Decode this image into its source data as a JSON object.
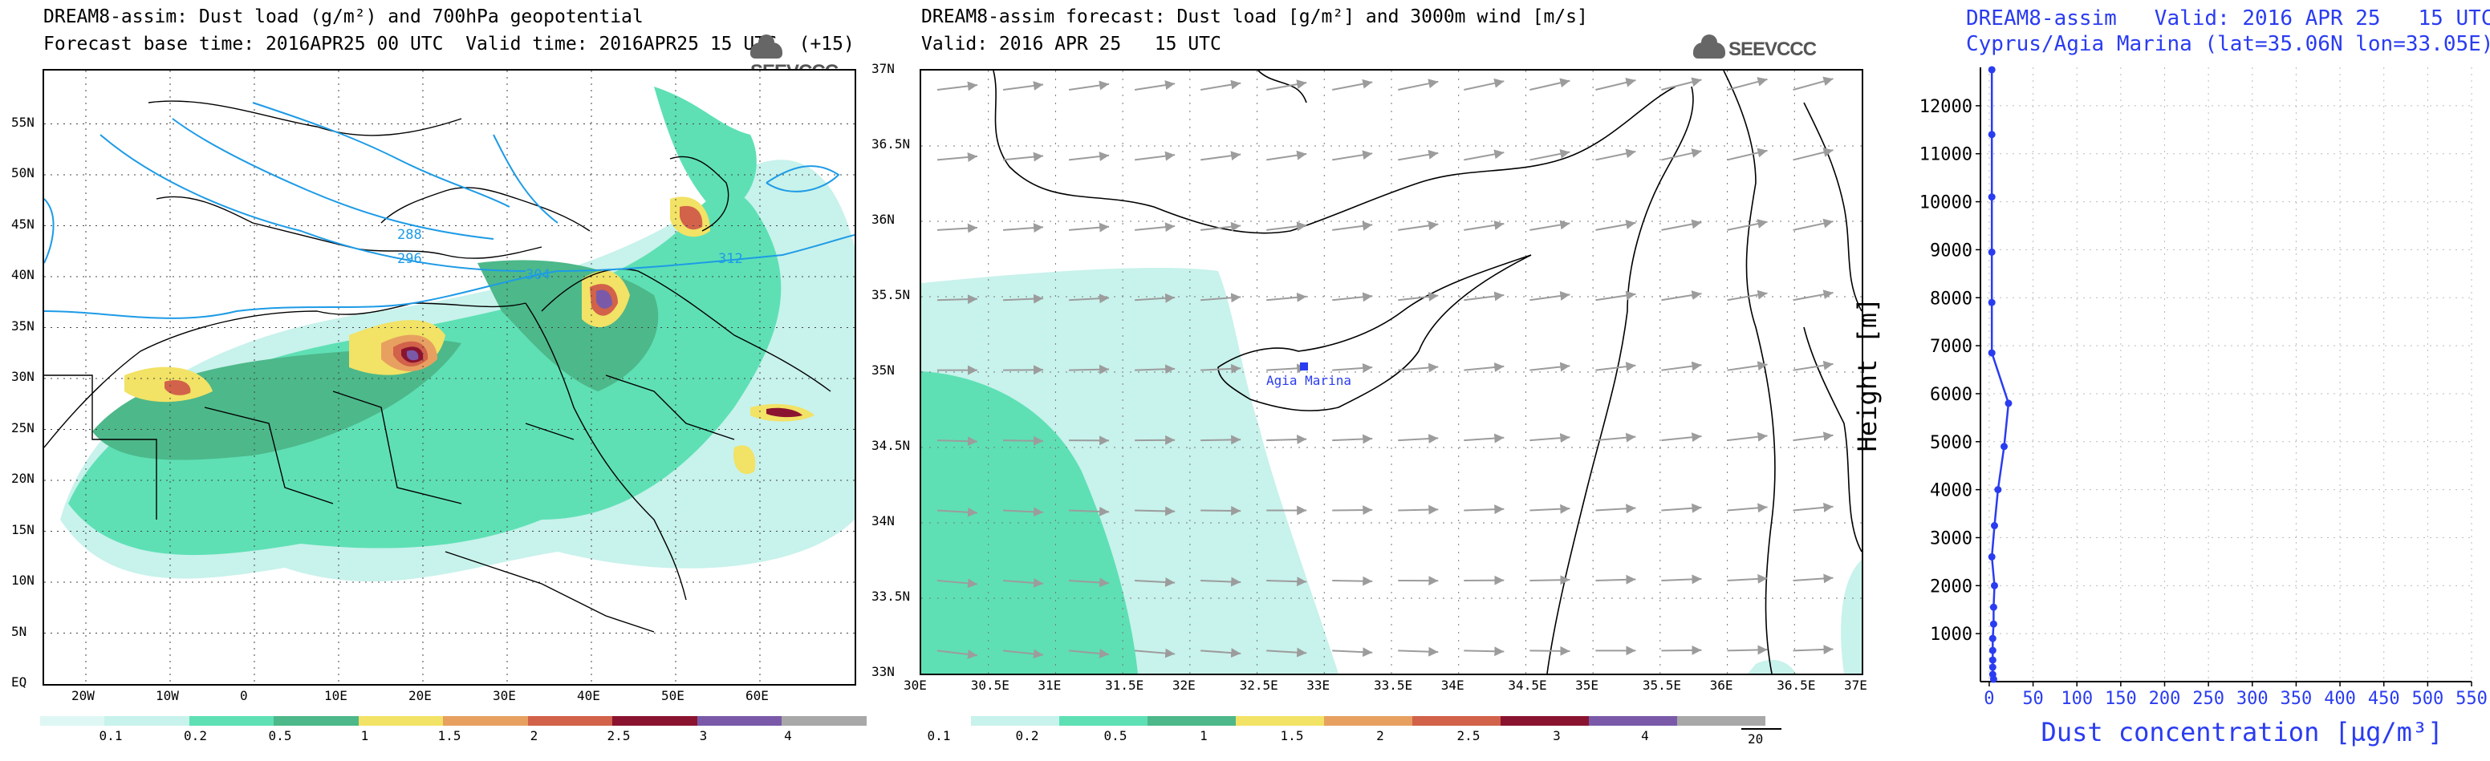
{
  "colors": {
    "c01": "#c8f2ec",
    "c02": "#5ee0b4",
    "c05": "#4db88a",
    "c10": "#f2e265",
    "c15": "#e8a060",
    "c20": "#d2624a",
    "c25": "#8a1430",
    "c30": "#7a5aa8",
    "c40": "#a8a8a8",
    "contour": "#1d9be6",
    "profile": "#2a3cf0",
    "wind": "#9c9c9c"
  },
  "left": {
    "title1": "DREAM8-assim: Dust load (g/m²) and 700hPa geopotential",
    "title2": "Forecast base time: 2016APR25 00 UTC  Valid time: 2016APR25 15 UTC  (+15)",
    "logo": "SEEVCCC",
    "lat_labels": [
      "EQ",
      "5N",
      "10N",
      "15N",
      "20N",
      "25N",
      "30N",
      "35N",
      "40N",
      "45N",
      "50N",
      "55N"
    ],
    "lon_labels": [
      "20W",
      "10W",
      "0",
      "10E",
      "20E",
      "30E",
      "40E",
      "50E",
      "60E"
    ],
    "contour_labels": [
      "288",
      "296",
      "304",
      "312"
    ],
    "colorbar_labels": [
      "0.1",
      "0.2",
      "0.5",
      "1",
      "1.5",
      "2",
      "2.5",
      "3",
      "4"
    ]
  },
  "middle": {
    "title1": "DREAM8-assim forecast: Dust load [g/m²] and 3000m wind [m/s]",
    "title2": "Valid: 2016 APR 25   15 UTC",
    "logo": "SEEVCCC",
    "station": "Agia Marina",
    "lat_labels": [
      "33N",
      "33.5N",
      "34N",
      "34.5N",
      "35N",
      "35.5N",
      "36N",
      "36.5N",
      "37N"
    ],
    "lon_labels": [
      "30E",
      "30.5E",
      "31E",
      "31.5E",
      "32E",
      "32.5E",
      "33E",
      "33.5E",
      "34E",
      "34.5E",
      "35E",
      "35.5E",
      "36E",
      "36.5E",
      "37E"
    ],
    "colorbar_labels": [
      "0.1",
      "0.2",
      "0.5",
      "1",
      "1.5",
      "2",
      "2.5",
      "3",
      "4"
    ],
    "wind_ref": "20"
  },
  "right": {
    "title1": "DREAM8-assim   Valid: 2016 APR 25   15 UTC",
    "title2": "Cyprus/Agia Marina (lat=35.06N lon=33.05E)",
    "ylabel": "Height [m]",
    "xlabel": "Dust concentration [µg/m³]"
  },
  "chart_data": {
    "type": "line",
    "title": "DREAM8-assim   Valid: 2016 APR 25   15 UTC",
    "subtitle": "Cyprus/Agia Marina (lat=35.06N lon=33.05E)",
    "xlabel": "Dust concentration [µg/m³]",
    "ylabel": "Height [m]",
    "xlim": [
      -10,
      550
    ],
    "ylim": [
      0,
      12800
    ],
    "xticks": [
      0,
      50,
      100,
      150,
      200,
      250,
      300,
      350,
      400,
      450,
      500,
      550
    ],
    "yticks": [
      1000,
      2000,
      3000,
      4000,
      5000,
      6000,
      7000,
      8000,
      9000,
      10000,
      11000,
      12000
    ],
    "grid": true,
    "series": [
      {
        "points": [
          [
            3,
            12750
          ],
          [
            3,
            11400
          ],
          [
            3,
            10100
          ],
          [
            3,
            8950
          ],
          [
            3,
            7900
          ],
          [
            3,
            6850
          ],
          [
            22,
            5800
          ],
          [
            17,
            4900
          ],
          [
            10,
            4000
          ],
          [
            6,
            3250
          ],
          [
            3,
            2600
          ],
          [
            6,
            2000
          ],
          [
            5,
            1550
          ],
          [
            5,
            1200
          ],
          [
            4,
            900
          ],
          [
            4,
            650
          ],
          [
            4,
            450
          ],
          [
            4,
            300
          ],
          [
            4,
            150
          ],
          [
            5,
            50
          ]
        ]
      }
    ]
  }
}
